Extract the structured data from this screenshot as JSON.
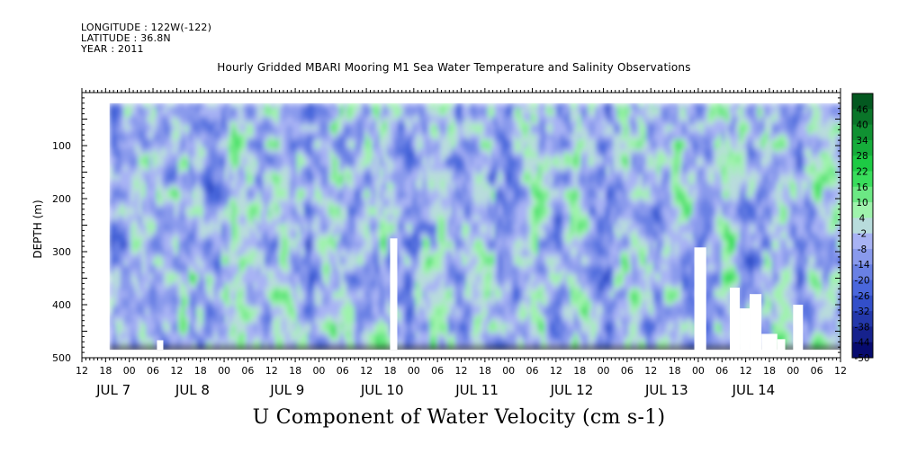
{
  "header": {
    "longitude": "LONGITUDE : 122W(-122)",
    "latitude": "LATITUDE : 36.8N",
    "year": "YEAR : 2011"
  },
  "chart_data": {
    "type": "heatmap",
    "title": "Hourly Gridded MBARI Mooring M1 Sea Water Temperature and Salinity Observations",
    "caption": "U Component of Water Velocity (cm s-1)",
    "ylabel": "DEPTH (m)",
    "ylim": [
      500,
      0
    ],
    "y_ticks": [
      100,
      200,
      300,
      400,
      500
    ],
    "y_ticks_drawn_from_top": true,
    "x_hour_ticks": [
      "12",
      "18",
      "00",
      "06",
      "12",
      "18",
      "00",
      "06",
      "12",
      "18",
      "00",
      "06",
      "12",
      "18",
      "00",
      "06",
      "12",
      "18",
      "00",
      "06",
      "12",
      "18",
      "00",
      "06",
      "12",
      "18",
      "00",
      "06",
      "12",
      "18",
      "00",
      "06",
      "12"
    ],
    "x_day_labels": [
      "JUL  7",
      "JUL 8",
      "JUL 9",
      "JUL 10",
      "JUL 11",
      "JUL 12",
      "JUL 13",
      "JUL 14"
    ],
    "data_depth_range": [
      20,
      485
    ],
    "data_start_hour_offset": 7,
    "colorbar": {
      "levels": [
        46,
        40,
        34,
        28,
        22,
        16,
        10,
        4,
        -2,
        -8,
        -14,
        -20,
        -26,
        -32,
        -38,
        -44,
        -50
      ],
      "min": -50,
      "max": 52,
      "step": 6
    },
    "colors": {
      "deep_negative": "#000060",
      "mid_negative": "#3a5ad8",
      "light_negative": "#b8c0f8",
      "light_positive": "#b8f8c0",
      "mid_positive": "#20d848",
      "deep_positive": "#004a1c"
    }
  }
}
